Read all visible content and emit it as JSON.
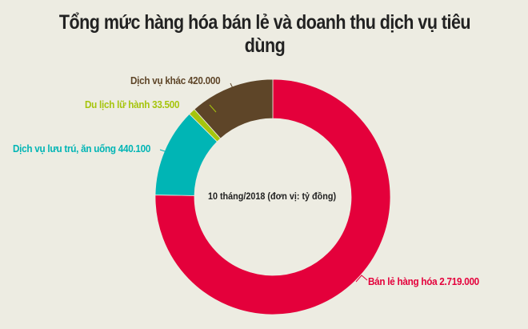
{
  "title": "Tổng mức hàng hóa bán lẻ và doanh thu dịch vụ tiêu dùng",
  "center_label": "10 tháng/2018 (đơn vị: tỷ đồng)",
  "labels": {
    "retail": "Bán lẻ hàng hóa 2.719.000",
    "accommodation": "Dịch vụ lưu trú, ăn uống 440.100",
    "travel": "Du lịch lữ hành 33.500",
    "other": "Dịch vụ khác 420.000"
  },
  "colors": {
    "background": "#edece2",
    "retail": "#e4003b",
    "accommodation": "#00b5b5",
    "travel": "#a6c50d",
    "other": "#5e4528",
    "title": "#222222"
  },
  "chart_data": {
    "type": "pie",
    "variant": "donut",
    "title": "Tổng mức hàng hóa bán lẻ và doanh thu dịch vụ tiêu dùng",
    "subtitle": "10 tháng/2018 (đơn vị: tỷ đồng)",
    "unit": "tỷ đồng",
    "categories": [
      "Bán lẻ hàng hóa",
      "Dịch vụ lưu trú, ăn uống",
      "Du lịch lữ hành",
      "Dịch vụ khác"
    ],
    "values": [
      2719000,
      440100,
      33500,
      420000
    ],
    "colors": [
      "#e4003b",
      "#00b5b5",
      "#a6c50d",
      "#5e4528"
    ],
    "start_angle_deg": 0,
    "direction": "clockwise",
    "legend": "none (direct labels)"
  }
}
